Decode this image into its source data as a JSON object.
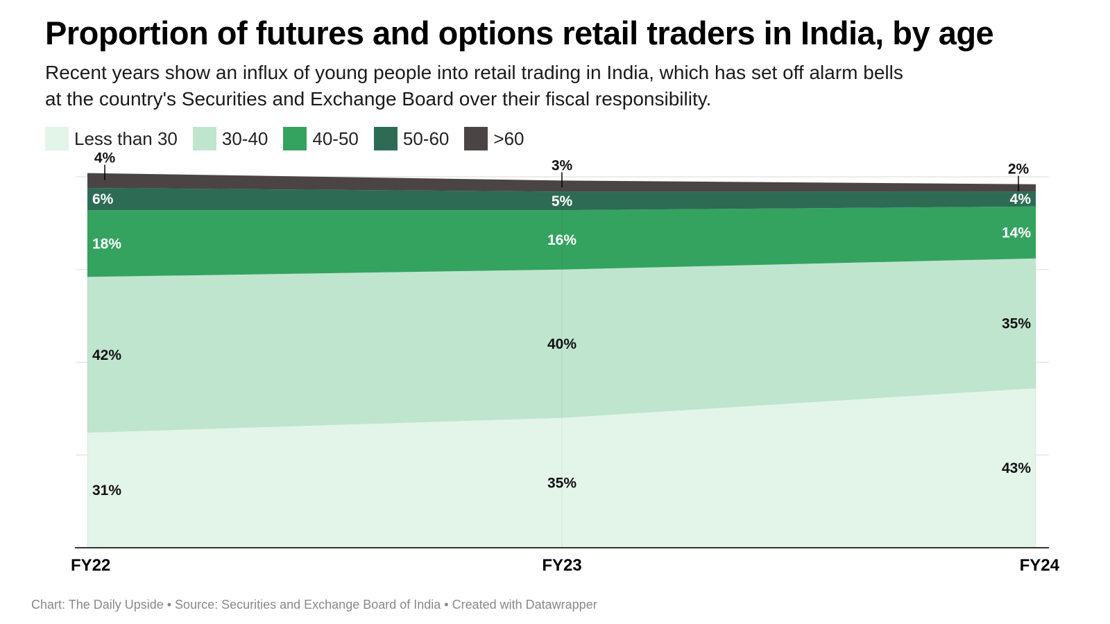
{
  "title": "Proportion of futures and options retail traders in India, by age",
  "subtitle_line1": "Recent years show an influx of young people into retail trading in India, which has set off alarm bells",
  "subtitle_line2": "at the country's Securities and Exchange Board over their fiscal responsibility.",
  "footer": "Chart: The Daily Upside • Source: Securities and Exchange Board of India • Created with Datawrapper",
  "chart_data": {
    "type": "area",
    "stacked": true,
    "title": "Proportion of futures and options retail traders in India, by age",
    "categories": [
      "FY22",
      "FY23",
      "FY24"
    ],
    "series": [
      {
        "name": "Less than 30",
        "color": "#e3f4e8",
        "label_color": "#111111",
        "values": [
          31,
          35,
          43
        ],
        "labels": [
          "31%",
          "35%",
          "43%"
        ]
      },
      {
        "name": "30-40",
        "color": "#bfe5cf",
        "label_color": "#111111",
        "values": [
          42,
          40,
          35
        ],
        "labels": [
          "42%",
          "40%",
          "35%"
        ]
      },
      {
        "name": "40-50",
        "color": "#34a35f",
        "label_color": "#ffffff",
        "values": [
          18,
          16,
          14
        ],
        "labels": [
          "18%",
          "16%",
          "14%"
        ]
      },
      {
        "name": "50-60",
        "color": "#2d6b55",
        "label_color": "#ffffff",
        "values": [
          6,
          5,
          4
        ],
        "labels": [
          "6%",
          "5%",
          "4%"
        ]
      },
      {
        "name": ">60",
        "color": "#4a4544",
        "label_color": "#111111",
        "values": [
          4,
          3,
          2
        ],
        "labels": [
          "4%",
          "3%",
          "2%"
        ]
      }
    ],
    "ylim": [
      0,
      100
    ],
    "grid": true,
    "legend": "top-left"
  }
}
